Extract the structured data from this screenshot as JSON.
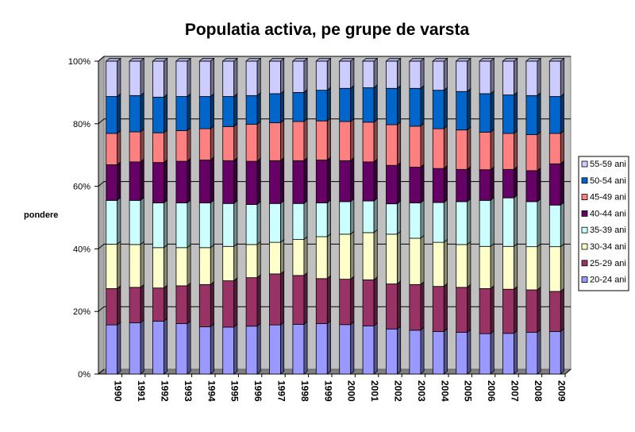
{
  "chart_data": {
    "type": "bar",
    "stacked": "percent",
    "three_d": true,
    "title": "Populatia activa, pe grupe de varsta",
    "xlabel": "",
    "ylabel": "pondere",
    "ylim": [
      0,
      100
    ],
    "yticks": [
      "0%",
      "20%",
      "40%",
      "60%",
      "80%",
      "100%"
    ],
    "grid": true,
    "legend_position": "right",
    "categories": [
      "1990",
      "1991",
      "1992",
      "1993",
      "1994",
      "1995",
      "1996",
      "1997",
      "1998",
      "1999",
      "2000",
      "2001",
      "2002",
      "2003",
      "2004",
      "2005",
      "2006",
      "2007",
      "2008",
      "2009"
    ],
    "series": [
      {
        "name": "20-24 ani",
        "color": "#9999FF",
        "values": [
          15.7,
          16.4,
          16.9,
          16.1,
          15.1,
          15.0,
          15.3,
          15.7,
          15.9,
          16.1,
          15.8,
          15.4,
          14.4,
          14.0,
          13.6,
          13.3,
          12.9,
          13.0,
          13.3,
          13.6
        ]
      },
      {
        "name": "25-29 ani",
        "color": "#993366",
        "values": [
          11.6,
          11.3,
          10.6,
          12.1,
          13.5,
          14.8,
          15.5,
          16.3,
          15.6,
          14.4,
          14.5,
          14.7,
          14.4,
          14.6,
          14.4,
          14.4,
          14.4,
          14.1,
          13.6,
          12.8
        ]
      },
      {
        "name": "30-34 ani",
        "color": "#FFFFCC",
        "values": [
          14.2,
          13.7,
          12.9,
          12.2,
          11.8,
          11.0,
          10.6,
          10.1,
          11.5,
          13.4,
          14.4,
          15.1,
          15.9,
          14.8,
          14.1,
          13.7,
          13.5,
          13.7,
          13.8,
          14.3
        ]
      },
      {
        "name": "35-39 ani",
        "color": "#CCFFFF",
        "values": [
          14.0,
          14.1,
          14.3,
          14.3,
          14.3,
          13.7,
          12.8,
          12.4,
          11.5,
          10.8,
          10.4,
          10.1,
          9.7,
          11.3,
          12.7,
          13.7,
          14.7,
          15.5,
          14.4,
          13.3
        ]
      },
      {
        "name": "40-44 ani",
        "color": "#660066",
        "values": [
          11.4,
          12.3,
          12.9,
          13.3,
          13.7,
          13.7,
          13.8,
          13.7,
          13.7,
          13.7,
          13.1,
          12.5,
          12.3,
          11.4,
          10.9,
          10.3,
          9.8,
          9.1,
          9.9,
          13.2
        ]
      },
      {
        "name": "45-49 ani",
        "color": "#FF8080",
        "values": [
          10.0,
          9.6,
          9.5,
          9.8,
          10.0,
          10.9,
          11.8,
          12.1,
          12.5,
          12.5,
          12.5,
          12.7,
          13.0,
          13.1,
          12.7,
          12.6,
          12.0,
          11.5,
          11.5,
          9.7
        ]
      },
      {
        "name": "50-54 ani",
        "color": "#0066CC",
        "values": [
          11.8,
          11.6,
          11.4,
          10.9,
          10.3,
          9.6,
          9.2,
          9.3,
          9.3,
          9.8,
          10.6,
          11.0,
          11.6,
          12.1,
          12.3,
          12.3,
          12.3,
          12.3,
          12.5,
          11.8
        ]
      },
      {
        "name": "55-59 ani",
        "color": "#CCCCFF",
        "values": [
          11.3,
          11.0,
          11.5,
          11.3,
          11.3,
          11.3,
          11.0,
          10.4,
          10.0,
          9.3,
          8.7,
          8.5,
          8.7,
          8.7,
          9.3,
          9.7,
          10.4,
          10.8,
          11.0,
          11.3
        ]
      }
    ],
    "wall_color": "#C0C0C0",
    "floor_color": "#808080"
  }
}
